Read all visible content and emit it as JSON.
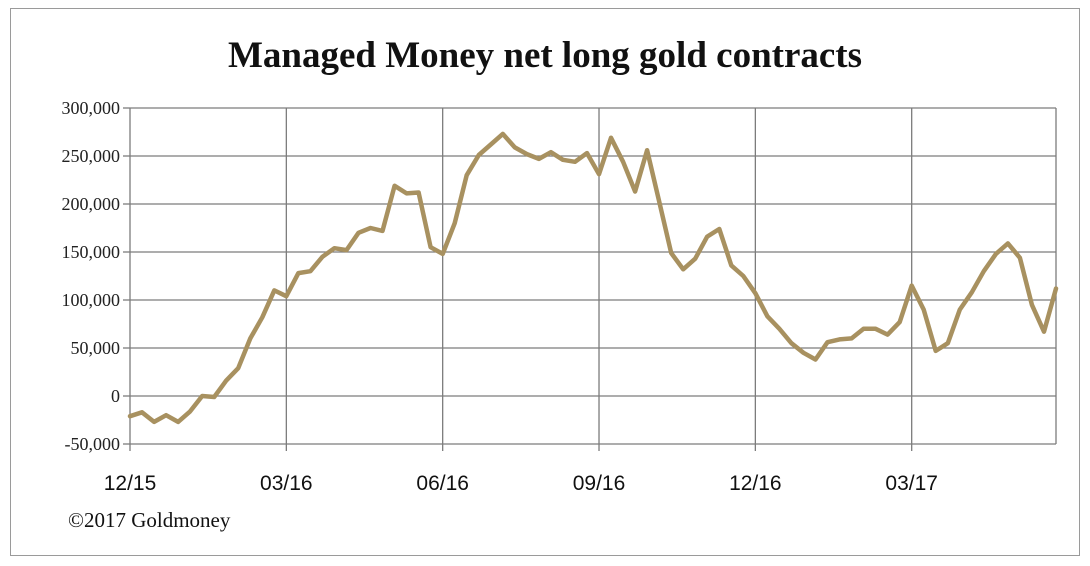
{
  "chart_data": {
    "type": "line",
    "title": "Managed Money net long gold contracts",
    "xlabel": "",
    "ylabel": "",
    "x_tick_labels": [
      "12/15",
      "03/16",
      "06/16",
      "09/16",
      "12/16",
      "03/17"
    ],
    "y_tick_labels": [
      "300,000",
      "250,000",
      "200,000",
      "150,000",
      "100,000",
      "50,000",
      "0",
      "-50,000"
    ],
    "ylim": [
      -50000,
      300000
    ],
    "yticks": [
      300000,
      250000,
      200000,
      150000,
      100000,
      50000,
      0,
      -50000
    ],
    "grid": true,
    "line_color": "#a89160",
    "series": [
      {
        "values": [
          -21000,
          -17000,
          -27000,
          -20000,
          -27000,
          -16000,
          0,
          -1000,
          16000,
          29000,
          60000,
          82000,
          110000,
          104000,
          128000,
          130000,
          145000,
          154000,
          152000,
          170000,
          175000,
          172000,
          219000,
          211000,
          212000,
          155000,
          148000,
          180000,
          230000,
          251000,
          262000,
          273000,
          259000,
          252000,
          247000,
          254000,
          246000,
          244000,
          253000,
          231000,
          269000,
          244000,
          213000,
          256000,
          203000,
          149000,
          132000,
          143000,
          166000,
          174000,
          136000,
          125000,
          107000,
          83000,
          70000,
          55000,
          45000,
          38000,
          56000,
          59000,
          60000,
          70000,
          70000,
          64000,
          77000,
          115000,
          90000,
          47000,
          55000,
          90000,
          108000,
          130000,
          148000,
          159000,
          144000,
          95000,
          67000,
          112000
        ]
      }
    ]
  },
  "footer": {
    "credit": "©2017 Goldmoney"
  }
}
